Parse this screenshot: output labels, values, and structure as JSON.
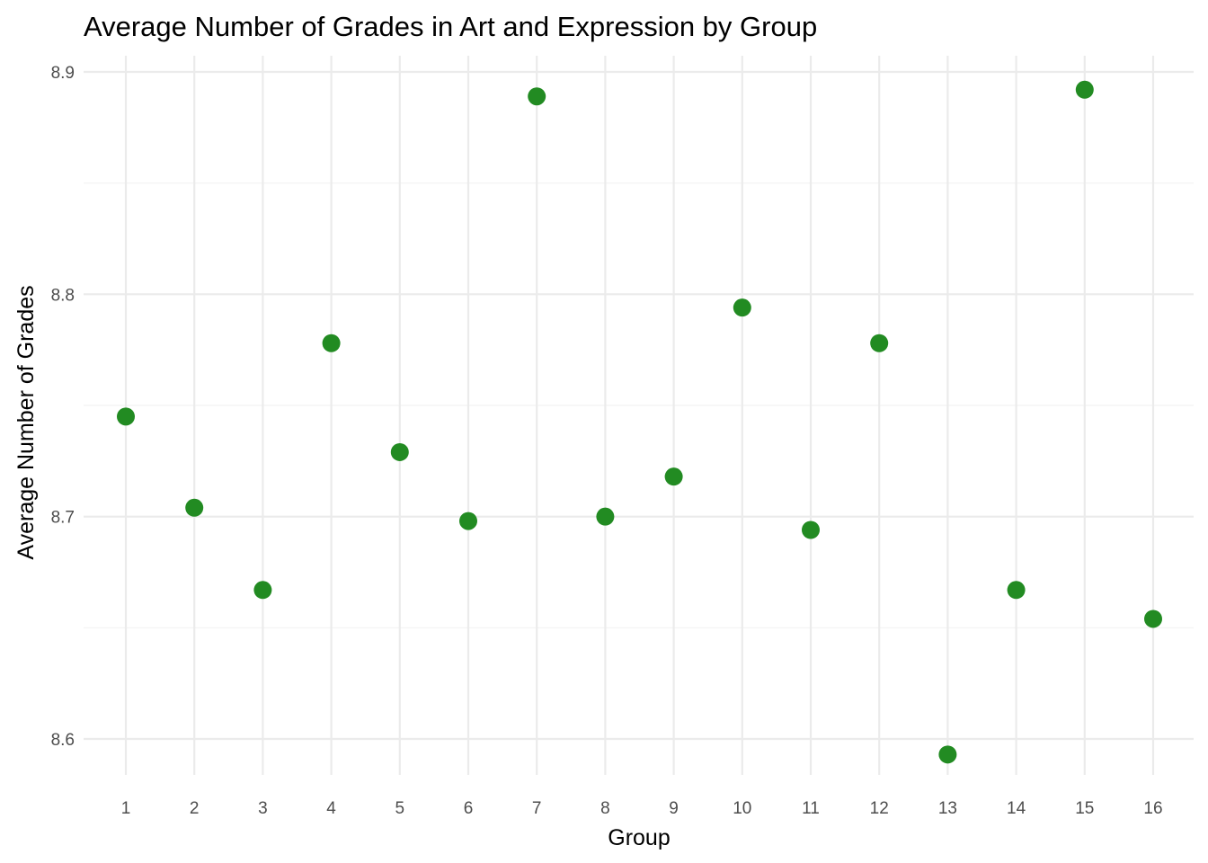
{
  "chart_data": {
    "type": "scatter",
    "title": "Average Number of Grades in Art and Expression by Group",
    "xlabel": "Group",
    "ylabel": "Average Number of Grades",
    "x": [
      1,
      2,
      3,
      4,
      5,
      6,
      7,
      8,
      9,
      10,
      11,
      12,
      13,
      14,
      15,
      16
    ],
    "x_tick_labels": [
      "1",
      "2",
      "3",
      "4",
      "5",
      "6",
      "7",
      "8",
      "9",
      "10",
      "11",
      "12",
      "13",
      "14",
      "15",
      "16"
    ],
    "y": [
      8.745,
      8.704,
      8.667,
      8.778,
      8.729,
      8.698,
      8.889,
      8.7,
      8.718,
      8.794,
      8.694,
      8.778,
      8.593,
      8.667,
      8.892,
      8.654
    ],
    "y_ticks": [
      8.6,
      8.7,
      8.8,
      8.9
    ],
    "y_tick_labels": [
      "8.6",
      "8.7",
      "8.8",
      "8.9"
    ],
    "ylim": [
      8.585,
      8.9
    ],
    "grid": true,
    "legend": "none",
    "point_color": "#228b22"
  }
}
